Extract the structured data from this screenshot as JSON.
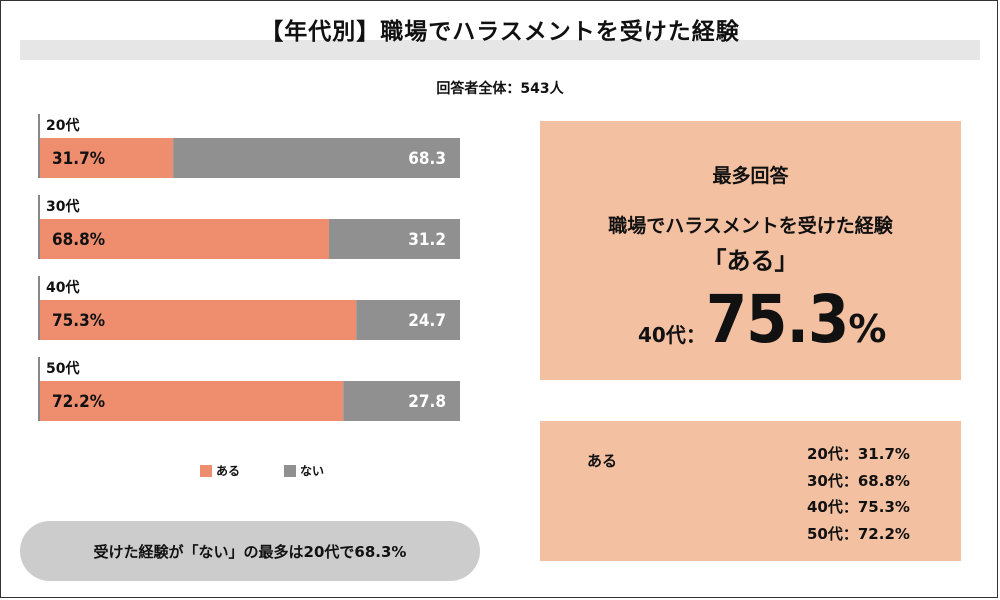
{
  "title": "【年代別】職場でハラスメントを受けた経験",
  "subtitle": "回答者全体：543人",
  "colors": {
    "aru": "#ef8e6e",
    "nai": "#909090",
    "box": "#f4c0a2",
    "pill": "#cccccc"
  },
  "legend": [
    {
      "label": "ある",
      "color": "#ef8e6e"
    },
    {
      "label": "ない",
      "color": "#909090"
    }
  ],
  "chart_data": {
    "type": "bar",
    "orientation": "horizontal",
    "stacked": true,
    "categories": [
      "20代",
      "30代",
      "40代",
      "50代"
    ],
    "series": [
      {
        "name": "ある",
        "values": [
          31.7,
          68.8,
          75.3,
          72.2
        ],
        "labels": [
          "31.7%",
          "68.8%",
          "75.3%",
          "72.2%"
        ]
      },
      {
        "name": "ない",
        "values": [
          68.3,
          31.2,
          24.7,
          27.8
        ],
        "labels": [
          "68.3",
          "31.2",
          "24.7",
          "27.8"
        ]
      }
    ],
    "xlim": [
      0,
      100
    ],
    "legend_position": "bottom"
  },
  "pill_text": "受けた経験が「ない」の最多は20代で68.3%",
  "highlight": {
    "heading": "最多回答",
    "line1": "職場でハラスメントを受けた経験",
    "line2": "「ある」",
    "age": "40代：",
    "value": "75.3",
    "unit": "%"
  },
  "summary": {
    "label": "ある",
    "items": [
      "20代：31.7%",
      "30代：68.8%",
      "40代：75.3%",
      "50代：72.2%"
    ]
  }
}
